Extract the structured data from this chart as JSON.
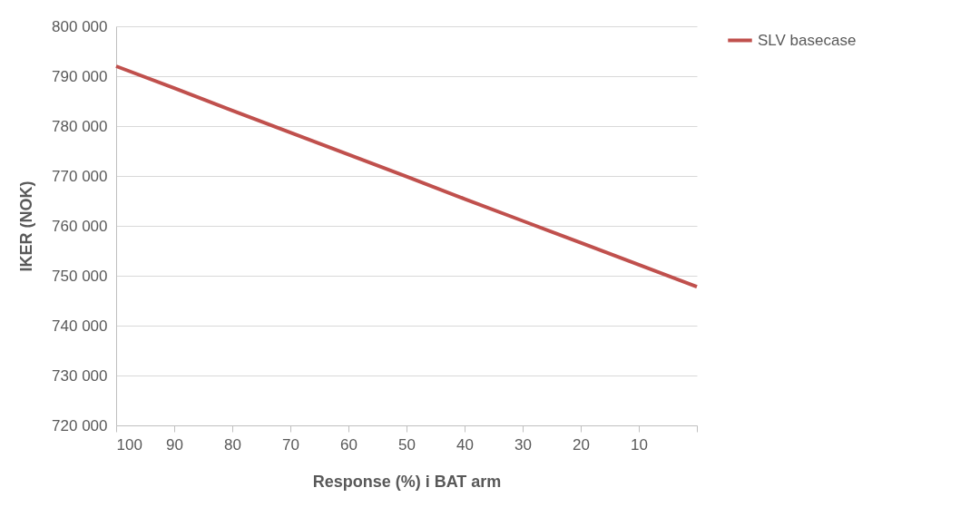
{
  "chart_data": {
    "type": "line",
    "xlabel": "Response (%) i BAT arm",
    "ylabel": "IKER (NOK)",
    "x": [
      100,
      90,
      80,
      70,
      60,
      50,
      40,
      30,
      20,
      10,
      0
    ],
    "series": [
      {
        "name": "SLV basecase",
        "color": "#c0504d",
        "values": [
          792000,
          787600,
          783100,
          778700,
          774300,
          769900,
          765400,
          761000,
          756600,
          752200,
          747800
        ]
      }
    ],
    "xlim": [
      100,
      0
    ],
    "xticks": [
      100,
      90,
      80,
      70,
      60,
      50,
      40,
      30,
      20,
      10,
      {
        "value": 0,
        "label": null
      }
    ],
    "ylim": [
      720000,
      800000
    ],
    "yticks": [
      {
        "value": 720000,
        "label": "720 000"
      },
      {
        "value": 730000,
        "label": "730 000"
      },
      {
        "value": 740000,
        "label": "740 000"
      },
      {
        "value": 750000,
        "label": "750 000"
      },
      {
        "value": 760000,
        "label": "760 000"
      },
      {
        "value": 770000,
        "label": "770 000"
      },
      {
        "value": 780000,
        "label": "780 000"
      },
      {
        "value": 790000,
        "label": "790 000"
      },
      {
        "value": 800000,
        "label": "800 000"
      }
    ],
    "grid": "y",
    "legend": "right",
    "marker": "none",
    "line_style": "solid"
  }
}
